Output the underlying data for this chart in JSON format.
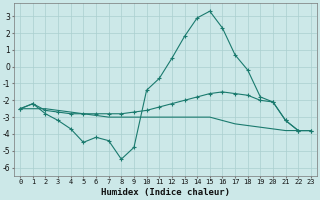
{
  "xlabel": "Humidex (Indice chaleur)",
  "background_color": "#cce8e8",
  "grid_color": "#aacfcf",
  "line_color": "#1a7a6e",
  "xlim": [
    -0.5,
    23.5
  ],
  "ylim": [
    -6.5,
    3.8
  ],
  "yticks": [
    -6,
    -5,
    -4,
    -3,
    -2,
    -1,
    0,
    1,
    2,
    3
  ],
  "xticks": [
    0,
    1,
    2,
    3,
    4,
    5,
    6,
    7,
    8,
    9,
    10,
    11,
    12,
    13,
    14,
    15,
    16,
    17,
    18,
    19,
    20,
    21,
    22,
    23
  ],
  "line1_x": [
    0,
    1,
    2,
    3,
    4,
    5,
    6,
    7,
    8,
    9,
    10,
    11,
    12,
    13,
    14,
    15,
    16,
    17,
    18,
    19,
    20,
    21,
    22,
    23
  ],
  "line1_y": [
    -2.5,
    -2.2,
    -2.8,
    -3.2,
    -3.7,
    -4.5,
    -4.2,
    -4.4,
    -5.5,
    -4.8,
    -1.4,
    -0.7,
    0.5,
    1.8,
    2.9,
    3.3,
    2.3,
    0.7,
    -0.2,
    -1.8,
    -2.1,
    -3.2,
    -3.8,
    -3.8
  ],
  "line2_x": [
    0,
    1,
    2,
    3,
    4,
    5,
    6,
    7,
    8,
    9,
    10,
    11,
    12,
    13,
    14,
    15,
    16,
    17,
    18,
    19,
    20,
    21,
    22,
    23
  ],
  "line2_y": [
    -2.5,
    -2.2,
    -2.6,
    -2.7,
    -2.8,
    -2.8,
    -2.8,
    -2.8,
    -2.8,
    -2.7,
    -2.6,
    -2.4,
    -2.2,
    -2.0,
    -1.8,
    -1.6,
    -1.5,
    -1.6,
    -1.7,
    -2.0,
    -2.1,
    -3.2,
    -3.8,
    -3.8
  ],
  "line3_x": [
    0,
    1,
    2,
    3,
    4,
    5,
    6,
    7,
    8,
    9,
    10,
    11,
    12,
    13,
    14,
    15,
    16,
    17,
    18,
    19,
    20,
    21,
    22,
    23
  ],
  "line3_y": [
    -2.5,
    -2.5,
    -2.5,
    -2.6,
    -2.7,
    -2.8,
    -2.9,
    -3.0,
    -3.0,
    -3.0,
    -3.0,
    -3.0,
    -3.0,
    -3.0,
    -3.0,
    -3.0,
    -3.2,
    -3.4,
    -3.5,
    -3.6,
    -3.7,
    -3.8,
    -3.8,
    -3.8
  ]
}
